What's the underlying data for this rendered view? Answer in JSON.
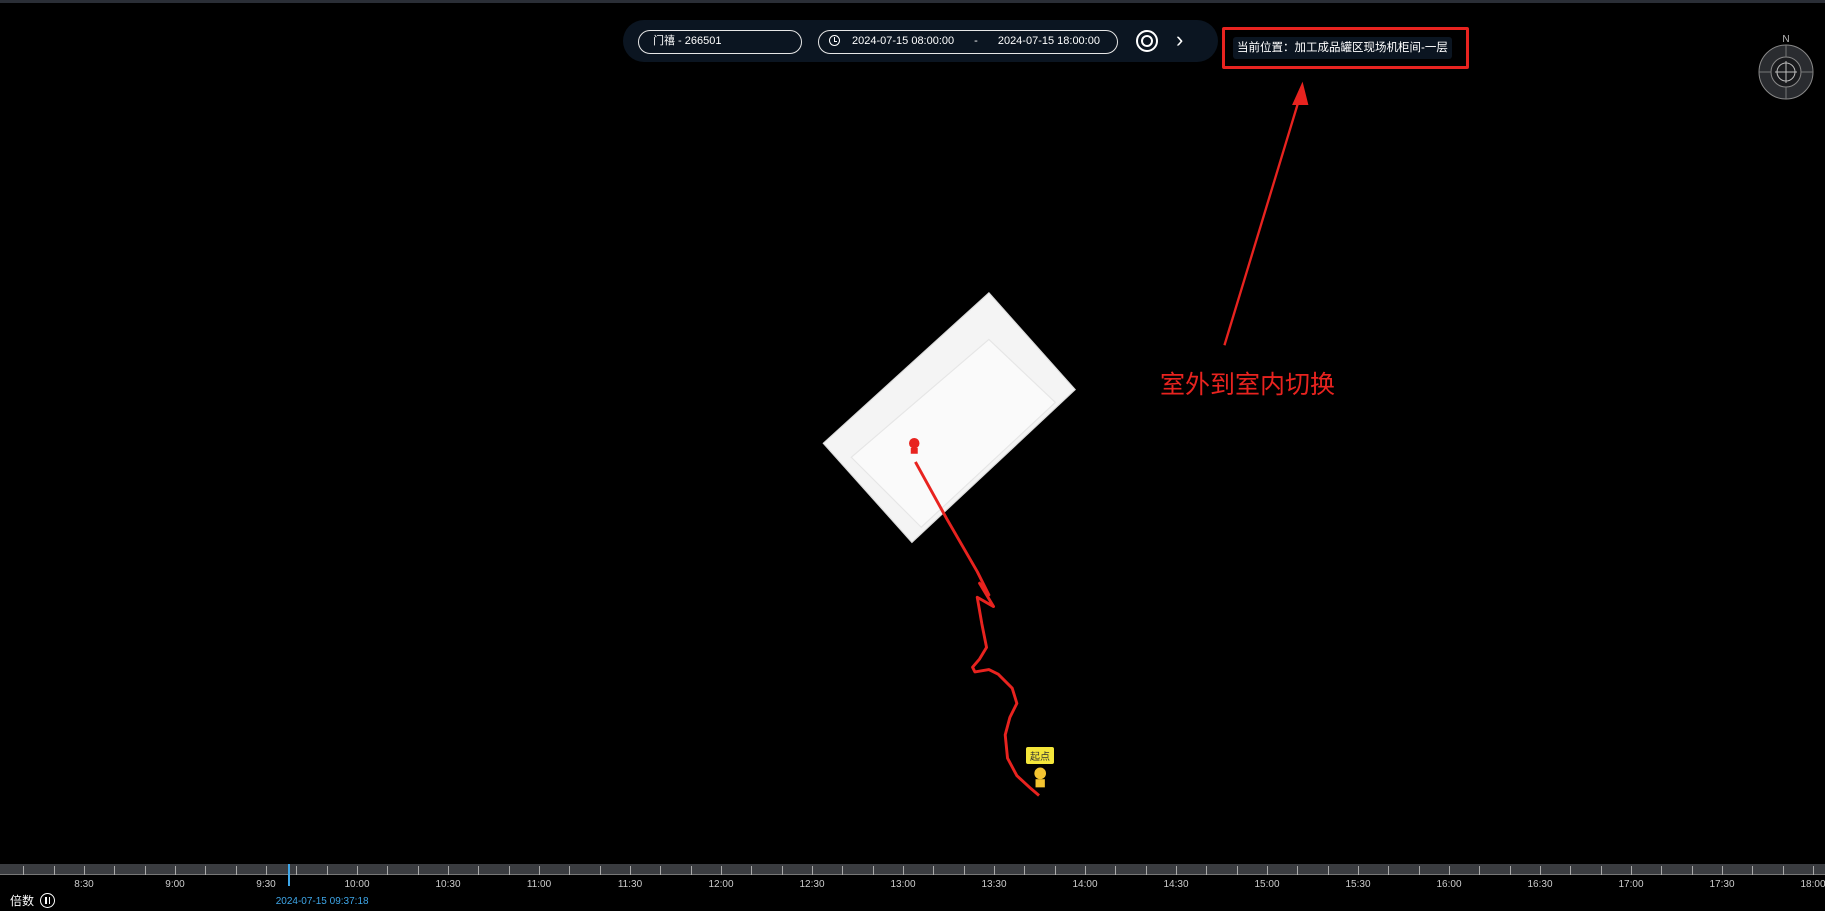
{
  "search_bar": {
    "device": "门禧 - 266501",
    "start_time": "2024-07-15 08:00:00",
    "separator": "-",
    "end_time": "2024-07-15 18:00:00",
    "search_icon": "search-icon",
    "next_icon": "chevron-right-icon"
  },
  "location": {
    "text": "当前位置：加工成品罐区现场机柜间-一层",
    "highlight_color": "#e8231f"
  },
  "annotation": {
    "text": "室外到室内切换",
    "color": "#e8231f"
  },
  "compass": {
    "north_label": "N"
  },
  "map": {
    "start_label": "起点",
    "track_color": "#e8231f"
  },
  "timeline": {
    "labels": [
      "8:30",
      "9:00",
      "9:30",
      "10:00",
      "10:30",
      "11:00",
      "11:30",
      "12:00",
      "12:30",
      "13:00",
      "13:30",
      "14:00",
      "14:30",
      "15:00",
      "15:30",
      "16:00",
      "16:30",
      "17:00",
      "17:30",
      "18:00"
    ],
    "current_time": "2024-07-15 09:37:18",
    "speed_label": "倍数",
    "playing": false,
    "accent_color": "#3ea6e8"
  }
}
